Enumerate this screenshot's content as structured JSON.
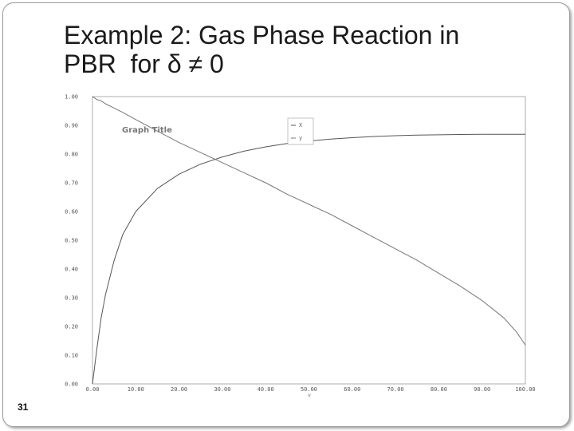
{
  "slide": {
    "title_line1": "Example 2: Gas Phase Reaction in",
    "title_line2": "PBR  for δ ≠ 0",
    "page_number": "31"
  },
  "chart_data": {
    "type": "line",
    "title": "Graph Title",
    "xlabel": "W",
    "ylabel": "",
    "xlim": [
      0,
      100
    ],
    "ylim": [
      0,
      1
    ],
    "x_ticks": [
      "0.00",
      "10.00",
      "20.00",
      "30.00",
      "40.00",
      "50.00",
      "60.00",
      "70.00",
      "80.00",
      "90.00",
      "100.00"
    ],
    "y_ticks": [
      "0.00",
      "0.10",
      "0.20",
      "0.30",
      "0.40",
      "0.50",
      "0.60",
      "0.70",
      "0.80",
      "0.90",
      "1.00"
    ],
    "legend_position": "top-center",
    "grid": false,
    "x": [
      0,
      1,
      2,
      3,
      5,
      7,
      10,
      15,
      20,
      25,
      30,
      35,
      40,
      45,
      50,
      55,
      60,
      65,
      70,
      75,
      80,
      85,
      90,
      95,
      98,
      100
    ],
    "series": [
      {
        "name": "X",
        "color": "#555555",
        "values": [
          0,
          0.12,
          0.23,
          0.31,
          0.43,
          0.52,
          0.6,
          0.68,
          0.73,
          0.765,
          0.79,
          0.81,
          0.825,
          0.837,
          0.845,
          0.852,
          0.857,
          0.861,
          0.864,
          0.866,
          0.867,
          0.868,
          0.869,
          0.869,
          0.869,
          0.869
        ]
      },
      {
        "name": "y",
        "color": "#777777",
        "values": [
          1,
          0.99,
          0.985,
          0.975,
          0.96,
          0.945,
          0.92,
          0.88,
          0.84,
          0.805,
          0.77,
          0.735,
          0.7,
          0.66,
          0.625,
          0.59,
          0.55,
          0.51,
          0.47,
          0.43,
          0.385,
          0.34,
          0.29,
          0.23,
          0.18,
          0.135
        ]
      }
    ]
  }
}
